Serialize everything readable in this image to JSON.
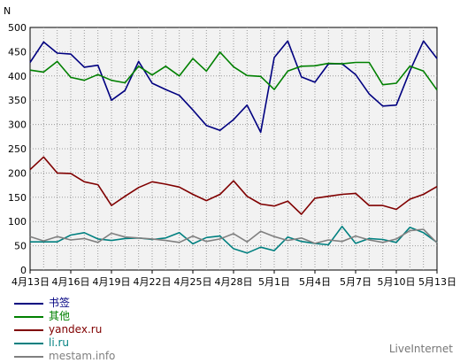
{
  "chart_data": {
    "type": "line",
    "ylabel": "N",
    "ylim": [
      0,
      500
    ],
    "yticks": [
      0,
      50,
      100,
      150,
      200,
      250,
      300,
      350,
      400,
      450,
      500
    ],
    "x_tick_labels": [
      "4月13日",
      "4月16日",
      "4月19日",
      "4月22日",
      "4月25日",
      "4月28日",
      "5月1日",
      "5月4日",
      "5月7日",
      "5月10日",
      "5月13日"
    ],
    "grid": true,
    "legend_position": "bottom-left",
    "series": [
      {
        "name": "书签",
        "color": "#000080",
        "values": [
          428,
          470,
          447,
          445,
          418,
          422,
          350,
          370,
          430,
          385,
          372,
          360,
          330,
          298,
          288,
          310,
          340,
          284,
          438,
          472,
          398,
          387,
          425,
          425,
          403,
          363,
          338,
          340,
          410,
          472,
          436
        ]
      },
      {
        "name": "其他",
        "color": "#008000",
        "values": [
          412,
          408,
          430,
          397,
          391,
          403,
          391,
          386,
          420,
          402,
          420,
          400,
          436,
          410,
          449,
          419,
          401,
          399,
          372,
          410,
          420,
          421,
          426,
          425,
          428,
          428,
          382,
          385,
          420,
          410,
          371
        ]
      },
      {
        "name": "yandex.ru",
        "color": "#800000",
        "values": [
          207,
          233,
          200,
          199,
          182,
          176,
          133,
          152,
          170,
          182,
          177,
          171,
          156,
          143,
          156,
          184,
          152,
          136,
          132,
          142,
          115,
          148,
          152,
          156,
          158,
          133,
          133,
          125,
          146,
          156,
          172
        ]
      },
      {
        "name": "li.ru",
        "color": "#008080",
        "values": [
          58,
          58,
          58,
          72,
          77,
          64,
          61,
          65,
          66,
          63,
          66,
          77,
          54,
          67,
          70,
          44,
          35,
          47,
          40,
          68,
          59,
          55,
          52,
          90,
          55,
          65,
          63,
          57,
          88,
          77,
          57
        ]
      },
      {
        "name": "mestam.info",
        "color": "#808080",
        "values": [
          69,
          60,
          69,
          62,
          65,
          57,
          76,
          68,
          66,
          64,
          61,
          57,
          70,
          59,
          64,
          75,
          58,
          80,
          69,
          61,
          66,
          55,
          62,
          59,
          70,
          62,
          57,
          64,
          81,
          84,
          56
        ]
      }
    ]
  },
  "credit": "LiveInternet"
}
